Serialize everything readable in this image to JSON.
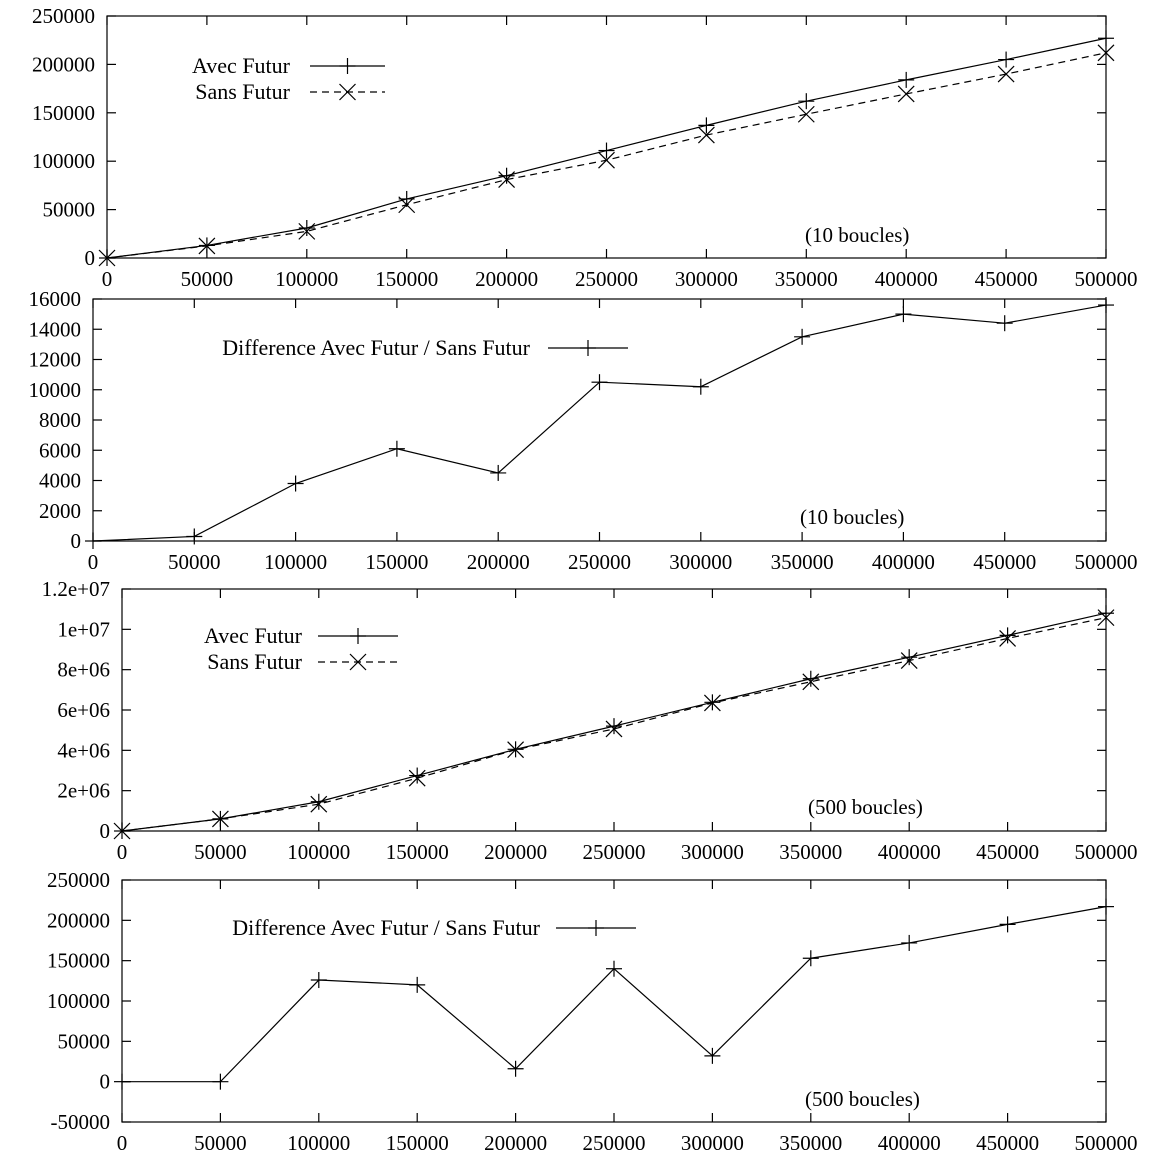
{
  "x_ticks": [
    "0",
    "50000",
    "100000",
    "150000",
    "200000",
    "250000",
    "300000",
    "350000",
    "400000",
    "450000",
    "500000"
  ],
  "chart_data": [
    {
      "type": "line",
      "x": [
        0,
        50000,
        100000,
        150000,
        200000,
        250000,
        300000,
        350000,
        400000,
        450000,
        500000
      ],
      "ylim": [
        0,
        250000
      ],
      "xlim": [
        0,
        500000
      ],
      "y_ticks": [
        "0",
        "50000",
        "100000",
        "150000",
        "200000",
        "250000"
      ],
      "grid": false,
      "legend_position": "top-left",
      "annotation": "(10 boucles)",
      "series": [
        {
          "name": "Avec Futur",
          "marker": "plus",
          "dash": "solid",
          "values": [
            0,
            13000,
            31000,
            61000,
            85000,
            111000,
            137000,
            162000,
            184000,
            205000,
            227000
          ]
        },
        {
          "name": "Sans Futur",
          "marker": "cross",
          "dash": "dashed",
          "values": [
            0,
            12500,
            27500,
            55000,
            81000,
            101000,
            127000,
            148500,
            169500,
            190000,
            212000
          ]
        }
      ]
    },
    {
      "type": "line",
      "x": [
        0,
        50000,
        100000,
        150000,
        200000,
        250000,
        300000,
        350000,
        400000,
        450000,
        500000
      ],
      "ylim": [
        0,
        16000
      ],
      "xlim": [
        0,
        500000
      ],
      "y_ticks": [
        "0",
        "2000",
        "4000",
        "6000",
        "8000",
        "10000",
        "12000",
        "14000",
        "16000"
      ],
      "grid": false,
      "legend_position": "top-left",
      "annotation": "(10 boucles)",
      "series": [
        {
          "name": "Difference Avec Futur / Sans Futur",
          "marker": "plus",
          "dash": "solid",
          "values": [
            0,
            300,
            3800,
            6100,
            4500,
            10500,
            10200,
            13500,
            15000,
            14400,
            15600
          ]
        }
      ]
    },
    {
      "type": "line",
      "x": [
        0,
        50000,
        100000,
        150000,
        200000,
        250000,
        300000,
        350000,
        400000,
        450000,
        500000
      ],
      "ylim": [
        0,
        12000000
      ],
      "xlim": [
        0,
        500000
      ],
      "y_ticks": [
        "0",
        "2e+06",
        "4e+06",
        "6e+06",
        "8e+06",
        "1e+07",
        "1.2e+07"
      ],
      "grid": false,
      "legend_position": "top-left",
      "annotation": "(500 boucles)",
      "series": [
        {
          "name": "Avec Futur",
          "marker": "plus",
          "dash": "solid",
          "values": [
            0,
            600000,
            1450000,
            2750000,
            4050000,
            5200000,
            6380000,
            7550000,
            8620000,
            9700000,
            10800000
          ]
        },
        {
          "name": "Sans Futur",
          "marker": "cross",
          "dash": "dashed",
          "values": [
            0,
            600000,
            1330000,
            2620000,
            4030000,
            5060000,
            6350000,
            7400000,
            8450000,
            9550000,
            10580000
          ]
        }
      ]
    },
    {
      "type": "line",
      "x": [
        0,
        50000,
        100000,
        150000,
        200000,
        250000,
        300000,
        350000,
        400000,
        450000,
        500000
      ],
      "ylim": [
        -50000,
        250000
      ],
      "xlim": [
        0,
        500000
      ],
      "y_ticks": [
        "-50000",
        "0",
        "50000",
        "100000",
        "150000",
        "200000",
        "250000"
      ],
      "grid": false,
      "legend_position": "top-left",
      "annotation": "(500 boucles)",
      "series": [
        {
          "name": "Difference Avec Futur / Sans Futur",
          "marker": "plus",
          "dash": "solid",
          "values": [
            0,
            0,
            126000,
            120000,
            16000,
            140000,
            32000,
            153000,
            172000,
            195000,
            217000
          ]
        }
      ]
    }
  ]
}
